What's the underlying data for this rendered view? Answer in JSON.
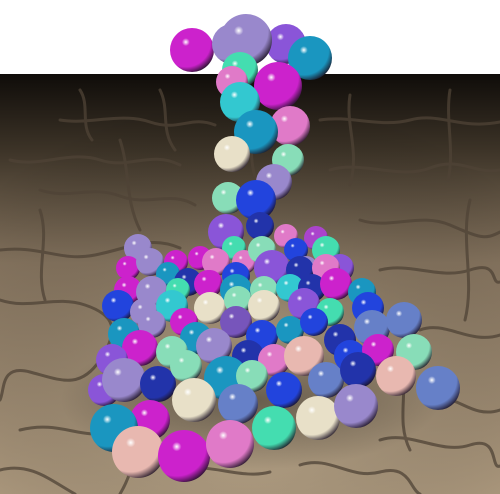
{
  "scene": {
    "title": "",
    "description_free": true,
    "colors": {
      "sky": "#ffffff",
      "floor_near": "#b29c80",
      "floor_far": "#0f0c09",
      "crack": "#5b4e40",
      "sphere_palette": {
        "magenta": "#cc22cc",
        "purple": "#8a55d8",
        "violet": "#7755bb",
        "blue": "#2244dd",
        "navy": "#2233aa",
        "teal": "#1a96c0",
        "cyan": "#33c8d0",
        "aqua": "#44ddb0",
        "mint": "#88ddb8",
        "cream": "#e8e0c8",
        "peach": "#e8b8b0",
        "pink": "#e07ac8",
        "lavender": "#9988cc",
        "periwinkle": "#6680c8",
        "orchid": "#aa44cc"
      }
    }
  }
}
